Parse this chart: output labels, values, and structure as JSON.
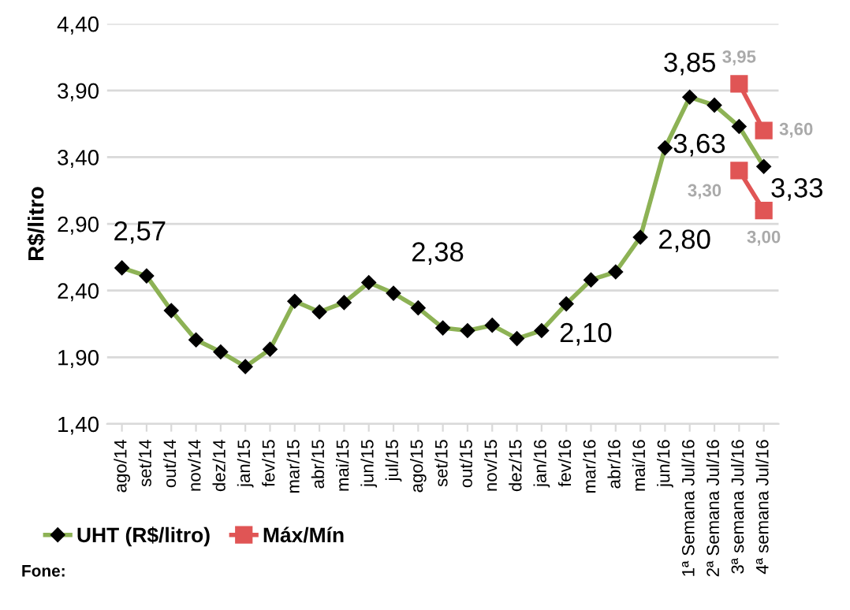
{
  "chart_data": {
    "type": "line",
    "ylabel": "R$/litro",
    "categories": [
      "ago/14",
      "set/14",
      "out/14",
      "nov/14",
      "dez/14",
      "jan/15",
      "fev/15",
      "mar/15",
      "abr/15",
      "mai/15",
      "jun/15",
      "jul/15",
      "ago/15",
      "set/15",
      "out/15",
      "nov/15",
      "dez/15",
      "jan/16",
      "fev/16",
      "mar/16",
      "abr/16",
      "mai/16",
      "jun/16",
      "1ª Semana Jul/16",
      "2ª Semana Jul/16",
      "3ª semana Jul/16",
      "4ª semana Jul/16"
    ],
    "series": [
      {
        "name": "UHT (R$/litro)",
        "color": "#8db255",
        "marker": "diamond",
        "values": [
          2.57,
          2.51,
          2.25,
          2.03,
          1.94,
          1.83,
          1.96,
          2.32,
          2.24,
          2.31,
          2.46,
          2.38,
          2.27,
          2.12,
          2.1,
          2.14,
          2.04,
          2.1,
          2.3,
          2.48,
          2.54,
          2.8,
          3.47,
          3.85,
          3.79,
          3.63,
          3.33
        ],
        "value_labels": [
          "2,57",
          null,
          null,
          null,
          null,
          null,
          null,
          null,
          null,
          null,
          null,
          "2,38",
          null,
          null,
          null,
          null,
          null,
          "2,10",
          null,
          null,
          null,
          "2,80",
          null,
          "3,85",
          null,
          "3,63",
          "3,33"
        ]
      },
      {
        "name": "Máx/Mín",
        "color": "#e05555",
        "marker": "square",
        "values": [
          null,
          null,
          null,
          null,
          null,
          null,
          null,
          null,
          null,
          null,
          null,
          null,
          null,
          null,
          null,
          null,
          null,
          null,
          null,
          null,
          null,
          null,
          null,
          null,
          null,
          3.95,
          3.6
        ],
        "value_labels": [
          null,
          null,
          null,
          null,
          null,
          null,
          null,
          null,
          null,
          null,
          null,
          null,
          null,
          null,
          null,
          null,
          null,
          null,
          null,
          null,
          null,
          null,
          null,
          null,
          null,
          "3,95",
          "3,60"
        ]
      },
      {
        "color": "#e05555",
        "marker": "square",
        "values": [
          null,
          null,
          null,
          null,
          null,
          null,
          null,
          null,
          null,
          null,
          null,
          null,
          null,
          null,
          null,
          null,
          null,
          null,
          null,
          null,
          null,
          null,
          null,
          null,
          null,
          3.3,
          3.0
        ],
        "value_labels": [
          null,
          null,
          null,
          null,
          null,
          null,
          null,
          null,
          null,
          null,
          null,
          null,
          null,
          null,
          null,
          null,
          null,
          null,
          null,
          null,
          null,
          null,
          null,
          null,
          null,
          "3,30",
          "3,00"
        ]
      }
    ],
    "ylim": [
      1.4,
      4.4
    ],
    "yticks": [
      {
        "value": 1.4,
        "label": "1,40"
      },
      {
        "value": 1.9,
        "label": "1,90"
      },
      {
        "value": 2.4,
        "label": "2,40"
      },
      {
        "value": 2.9,
        "label": "2,90"
      },
      {
        "value": 3.4,
        "label": "3,40"
      },
      {
        "value": 3.9,
        "label": "3,90"
      },
      {
        "value": 4.4,
        "label": "4,40"
      }
    ],
    "grid": "y",
    "legend": "bottom left",
    "annotations": [
      "Fone:"
    ]
  }
}
